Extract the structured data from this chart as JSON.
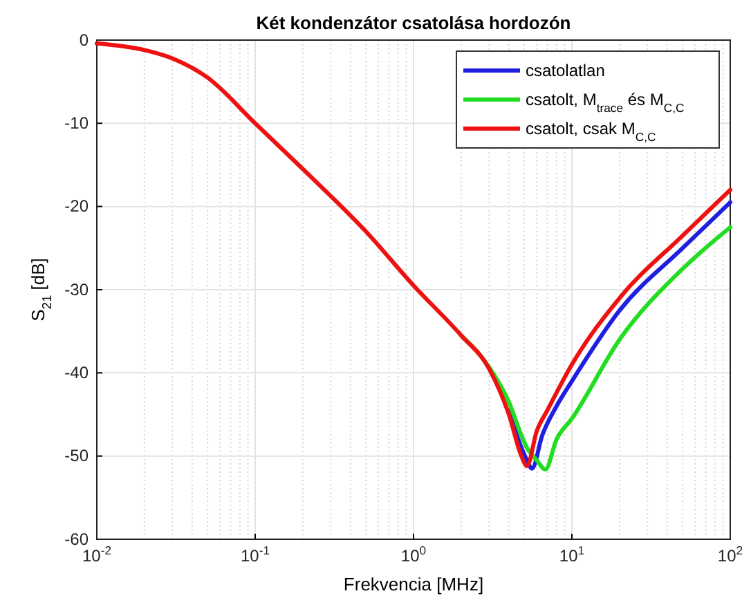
{
  "chart_data": {
    "type": "line",
    "title": "Két kondenzátor csatolása hordozón",
    "xlabel": "Frekvencia [MHz]",
    "ylabel": "S$_{21}$ [dB]",
    "log": "x",
    "grid": true,
    "legend": "top right",
    "line_style": "solid",
    "marker": "none",
    "xlim": [
      0.01,
      100
    ],
    "ylim": [
      -60,
      0
    ],
    "xticks": [
      {
        "value": 0.01,
        "label": "10$^{-2}$"
      },
      {
        "value": 0.1,
        "label": "10$^{-1}$"
      },
      {
        "value": 1,
        "label": "10$^{0}$"
      },
      {
        "value": 10,
        "label": "10$^{1}$"
      },
      {
        "value": 100,
        "label": "10$^{2}$"
      }
    ],
    "yticks": [
      -60,
      -50,
      -40,
      -30,
      -20,
      -10,
      0
    ],
    "series": [
      {
        "name": "csatolatlan",
        "color": "#1f1fe0",
        "x": [
          4,
          4.8,
          5.2,
          5.6,
          6.5,
          8,
          10,
          20,
          50,
          100
        ],
        "values": [
          -44.5,
          -49,
          -50.5,
          -51.5,
          -47.5,
          -44,
          -41,
          -32.5,
          -25,
          -19.5
        ]
      },
      {
        "name": "csatolt, M$_{trace}$ és M$_{C,C}$",
        "color": "#22dd22",
        "x": [
          2,
          3,
          4,
          4.8,
          5.2,
          6,
          6.8,
          8,
          10,
          20,
          50,
          100
        ],
        "values": [
          -35.5,
          -39.3,
          -43.5,
          -47.5,
          -49,
          -50.5,
          -51.6,
          -48,
          -45.5,
          -36,
          -27.5,
          -22.5
        ]
      },
      {
        "name": "csatolt, csak M$_{C,C}$",
        "color": "#ee1111",
        "x": [
          0.01,
          0.02,
          0.03,
          0.05,
          0.1,
          0.2,
          0.5,
          1,
          2,
          3,
          4,
          4.8,
          5.2,
          6,
          7,
          10,
          20,
          50,
          100
        ],
        "values": [
          -0.4,
          -1.2,
          -2.2,
          -4.5,
          -10,
          -15.5,
          -23,
          -29.5,
          -35.5,
          -39.5,
          -45,
          -50,
          -51.2,
          -47,
          -44.5,
          -39,
          -31,
          -23.5,
          -18
        ]
      }
    ]
  }
}
